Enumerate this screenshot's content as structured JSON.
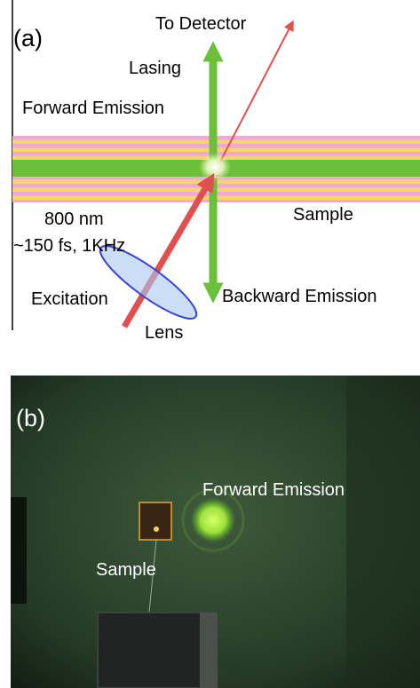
{
  "panel_a": {
    "label": "(a)",
    "to_detector": "To Detector",
    "lasing": "Lasing",
    "forward_emission": "Forward Emission",
    "wavelength": "800 nm",
    "pulse": "~150 fs, 1KHz",
    "sample": "Sample",
    "excitation": "Excitation",
    "lens": "Lens",
    "backward_emission": "Backward Emission"
  },
  "panel_b": {
    "label": "(b)",
    "forward_emission": "Forward Emission",
    "sample": "Sample"
  }
}
